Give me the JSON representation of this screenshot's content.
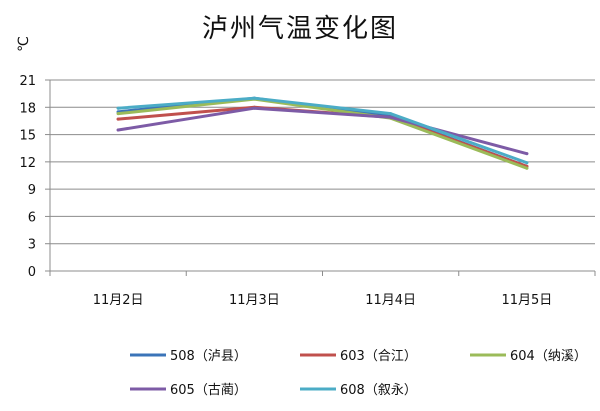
{
  "chart_data": {
    "type": "line",
    "title": "泸州气温变化图",
    "ylabel": "℃",
    "xlabel": "",
    "categories": [
      "11月2日",
      "11月3日",
      "11月4日",
      "11月5日"
    ],
    "ylim": [
      0,
      21
    ],
    "yticks": [
      0,
      3,
      6,
      9,
      12,
      15,
      18,
      21
    ],
    "grid": true,
    "legend_position": "bottom",
    "series": [
      {
        "name": "508（泸县）",
        "color": "#3b74b8",
        "values": [
          17.5,
          19.0,
          17.0,
          11.5
        ]
      },
      {
        "name": "603（合江）",
        "color": "#c0504d",
        "values": [
          16.7,
          18.0,
          16.9,
          11.5
        ]
      },
      {
        "name": "604（纳溪）",
        "color": "#9bbb59",
        "values": [
          17.3,
          18.9,
          16.8,
          11.3
        ]
      },
      {
        "name": "605（古蔺）",
        "color": "#7d5ba6",
        "values": [
          15.5,
          17.9,
          16.9,
          12.9
        ]
      },
      {
        "name": "608（叙永）",
        "color": "#4bacc6",
        "values": [
          17.9,
          19.0,
          17.3,
          11.9
        ]
      }
    ]
  }
}
